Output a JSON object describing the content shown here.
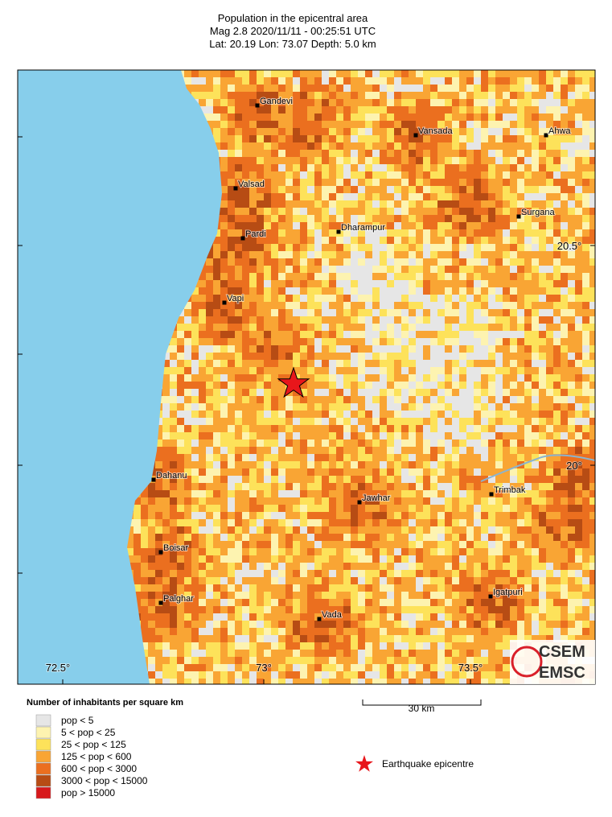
{
  "header": {
    "title": "Population in the epicentral area",
    "line2": "Mag 2.8  2020/11/11 - 00:25:51 UTC",
    "line3": "Lat: 20.19    Lon:  73.07     Depth:  5.0 km"
  },
  "map": {
    "towns": [
      "Gandevi",
      "Vansada",
      "Ahwa",
      "Valsad",
      "Surgana",
      "Pardi",
      "Dharampur",
      "Vapi",
      "Dahanu",
      "Jawhar",
      "Trimbak",
      "Boisar",
      "Igatpuri",
      "Palghar",
      "Vada"
    ],
    "lon_labels": [
      "72.5°",
      "73°",
      "73.5°"
    ],
    "lat_labels": [
      "20.5°",
      "20°"
    ]
  },
  "legend": {
    "title": "Number of inhabitants per square km",
    "classes": [
      {
        "label": "pop < 5",
        "color": "#e6e6e6"
      },
      {
        "label": "5 < pop < 25",
        "color": "#fdf3b0"
      },
      {
        "label": "25 < pop < 125",
        "color": "#fde25a"
      },
      {
        "label": "125 < pop < 600",
        "color": "#f9a534"
      },
      {
        "label": "600 < pop < 3000",
        "color": "#eb6f1f"
      },
      {
        "label": "3000 < pop < 15000",
        "color": "#b74c14"
      },
      {
        "label": "pop > 15000",
        "color": "#d7191c"
      }
    ],
    "epicentre": "Earthquake epicentre"
  },
  "scale": "30 km",
  "logo": [
    "CSEM",
    "EMSC"
  ]
}
